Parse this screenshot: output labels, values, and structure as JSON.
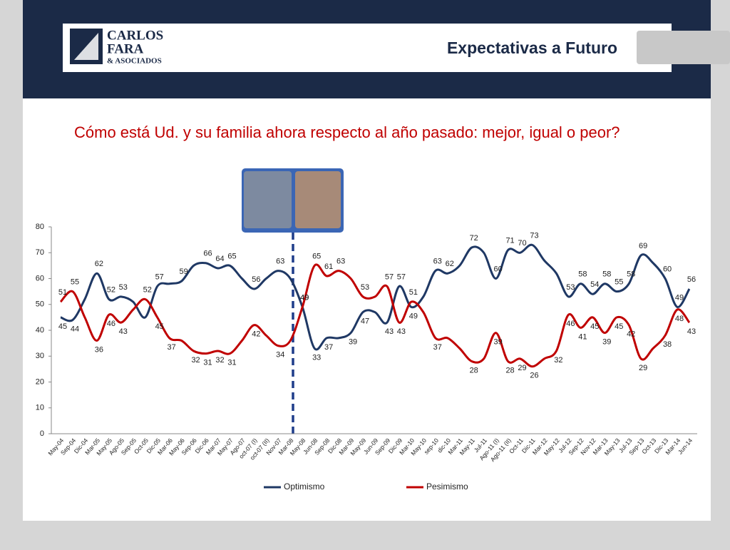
{
  "header": {
    "logo": [
      "CARLOS",
      "FARA",
      "& ASOCIADOS"
    ],
    "title": "Expectativas a Futuro"
  },
  "chart_data": {
    "type": "line",
    "title": "Cómo está Ud. y su familia ahora respecto al año pasado: mejor, igual o peor?",
    "categories": [
      "May-04",
      "Sep-04",
      "Dic-04",
      "Mar-05",
      "May-05",
      "Ago-05",
      "Sep-05",
      "Oct-05",
      "Dic-05",
      "Mar-06",
      "May-06",
      "Sep-06",
      "Dic-06",
      "Mar-07",
      "May-07",
      "Ago-07",
      "oct-07 (I)",
      "oct-07 (II)",
      "Nov-07",
      "Mar-08",
      "May-08",
      "Jun-08",
      "Sep-08",
      "Dic-08",
      "Mar-09",
      "May-09",
      "Jun-09",
      "Sep-09",
      "Dic-09",
      "Mar-10",
      "May-10",
      "sep-10",
      "dic-10",
      "Mar-11",
      "May-11",
      "Jul-11",
      "Ago-11 (I)",
      "Ago-11 (II)",
      "Oct-11",
      "Dic-11",
      "Mar-12",
      "May-12",
      "Jul-12",
      "Sep-12",
      "Nov-12",
      "Mar-13",
      "May-13",
      "Jul-13",
      "Sep-13",
      "Oct-13",
      "Dic-13",
      "Mar-14",
      "Jun-14"
    ],
    "series": [
      {
        "name": "Optimismo",
        "color": "#1f3864",
        "values": [
          45,
          44,
          52,
          62,
          52,
          53,
          51,
          45,
          57,
          58,
          59,
          65,
          66,
          64,
          65,
          60,
          56,
          60,
          63,
          60,
          49,
          33,
          37,
          37,
          39,
          47,
          47,
          43,
          57,
          49,
          53,
          63,
          62,
          65,
          72,
          70,
          60,
          71,
          70,
          73,
          67,
          62,
          53,
          58,
          54,
          58,
          55,
          58,
          69,
          66,
          60,
          49,
          56
        ],
        "value_labels": [
          45,
          44,
          null,
          62,
          52,
          53,
          null,
          null,
          57,
          null,
          59,
          null,
          66,
          64,
          65,
          null,
          56,
          null,
          63,
          null,
          49,
          33,
          37,
          null,
          39,
          47,
          null,
          43,
          57,
          49,
          null,
          63,
          62,
          null,
          72,
          null,
          60,
          71,
          70,
          73,
          null,
          null,
          53,
          58,
          54,
          58,
          55,
          58,
          69,
          null,
          60,
          49,
          56
        ]
      },
      {
        "name": "Pesimismo",
        "color": "#c00000",
        "values": [
          51,
          55,
          45,
          36,
          46,
          43,
          48,
          52,
          45,
          37,
          36,
          32,
          31,
          32,
          31,
          36,
          42,
          38,
          34,
          36,
          49,
          65,
          61,
          63,
          60,
          53,
          53,
          57,
          43,
          51,
          47,
          37,
          37,
          33,
          28,
          29,
          39,
          28,
          29,
          26,
          29,
          32,
          46,
          41,
          45,
          39,
          45,
          42,
          29,
          33,
          38,
          48,
          43
        ],
        "value_labels": [
          51,
          55,
          null,
          36,
          46,
          43,
          null,
          52,
          45,
          37,
          null,
          32,
          31,
          32,
          31,
          null,
          42,
          null,
          34,
          null,
          49,
          65,
          61,
          63,
          null,
          53,
          null,
          57,
          43,
          51,
          null,
          37,
          null,
          null,
          28,
          null,
          39,
          28,
          29,
          26,
          null,
          32,
          46,
          41,
          45,
          39,
          45,
          42,
          29,
          null,
          38,
          48,
          43
        ]
      }
    ],
    "ylim": [
      0,
      80
    ],
    "yticks": [
      0,
      10,
      20,
      30,
      40,
      50,
      60,
      70,
      80
    ],
    "grid": false,
    "legend": "bottom"
  }
}
